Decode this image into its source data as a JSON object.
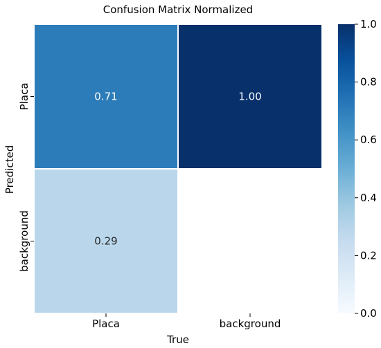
{
  "chart_data": {
    "type": "heatmap",
    "title": "Confusion Matrix Normalized",
    "xlabel": "True",
    "ylabel": "Predicted",
    "x_categories": [
      "Placa",
      "background"
    ],
    "y_categories": [
      "Placa",
      "background"
    ],
    "values": [
      [
        0.71,
        1.0
      ],
      [
        0.29,
        null
      ]
    ],
    "cell_labels": [
      [
        "0.71",
        "1.00"
      ],
      [
        "0.29",
        ""
      ]
    ],
    "colormap": "Blues",
    "colorbar": {
      "range": [
        0.0,
        1.0
      ],
      "ticks": [
        0.0,
        0.2,
        0.4,
        0.6,
        0.8,
        1.0
      ],
      "tick_labels": [
        "0.0",
        "0.2",
        "0.4",
        "0.6",
        "0.8",
        "1.0"
      ]
    },
    "grid": true
  }
}
